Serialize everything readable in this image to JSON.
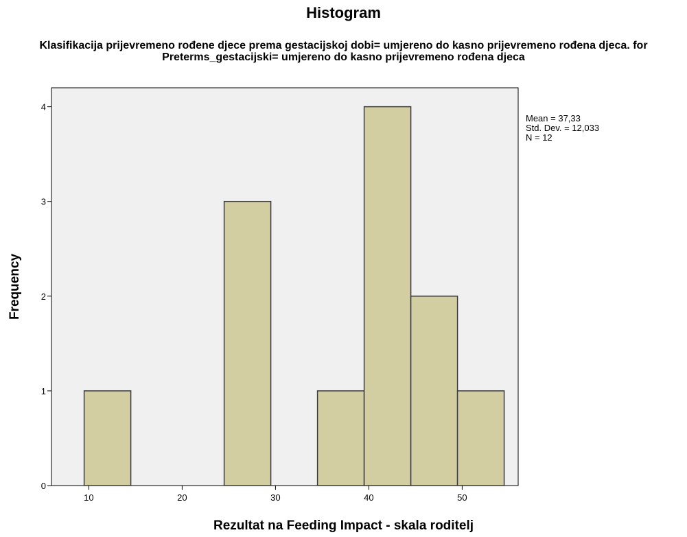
{
  "chart_data": {
    "type": "bar",
    "title": "Histogram",
    "subtitle": "Klasifikacija prijevremeno rođene djece prema gestacijskoj dobi= umjereno do kasno prijevremeno rođena djeca. for Preterms_gestacijski= umjereno do kasno prijevremeno rođena djeca",
    "xlabel": "Rezultat na Feeding Impact - skala roditelj",
    "ylabel": "Frequency",
    "bin_width": 5,
    "bins": [
      {
        "start": 9.5,
        "end": 14.5,
        "count": 1
      },
      {
        "start": 14.5,
        "end": 19.5,
        "count": 0
      },
      {
        "start": 19.5,
        "end": 24.5,
        "count": 0
      },
      {
        "start": 24.5,
        "end": 29.5,
        "count": 3
      },
      {
        "start": 29.5,
        "end": 34.5,
        "count": 0
      },
      {
        "start": 34.5,
        "end": 39.5,
        "count": 1
      },
      {
        "start": 39.5,
        "end": 44.5,
        "count": 4
      },
      {
        "start": 44.5,
        "end": 49.5,
        "count": 2
      },
      {
        "start": 49.5,
        "end": 54.5,
        "count": 1
      }
    ],
    "xlim": [
      6.0,
      56.0
    ],
    "ylim": [
      0,
      4.2
    ],
    "xticks": [
      10,
      20,
      30,
      40,
      50
    ],
    "yticks": [
      0,
      1,
      2,
      3,
      4
    ],
    "grid": false,
    "stats": {
      "mean": "Mean = 37,33",
      "std": "Std. Dev. = 12,033",
      "n": "N = 12"
    },
    "colors": {
      "bar_fill": "#d3cea2",
      "bar_stroke": "#3a3a3a",
      "plot_bg": "#f0f0f0"
    }
  }
}
